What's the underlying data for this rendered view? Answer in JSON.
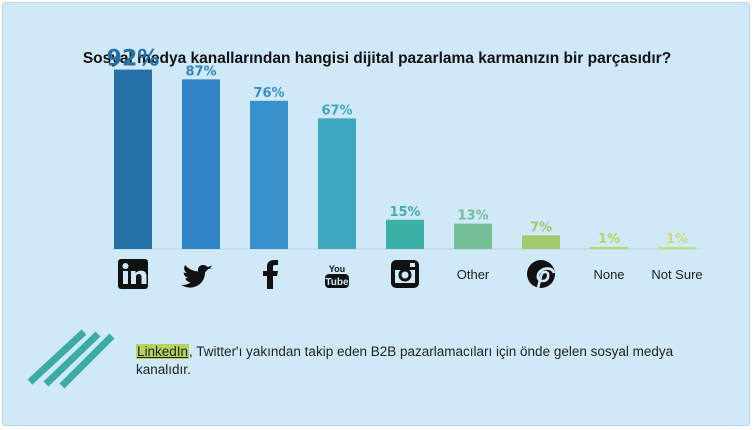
{
  "chart_data": {
    "type": "bar",
    "title": "Sosyal medya kanallarından hangisi dijital pazarlama karmanızın bir parçasıdır?",
    "categories": [
      "LinkedIn",
      "Twitter",
      "Facebook",
      "YouTube",
      "Instagram",
      "Other",
      "Pinterest",
      "None",
      "Not Sure"
    ],
    "values": [
      92,
      87,
      76,
      67,
      15,
      13,
      7,
      1,
      1
    ],
    "value_labels": [
      "92%",
      "87%",
      "76%",
      "67%",
      "15%",
      "13%",
      "7%",
      "1%",
      "1%"
    ],
    "printed_category_labels": [
      "",
      "",
      "",
      "",
      "",
      "Other",
      "",
      "None",
      "Not Sure"
    ],
    "icons": [
      "linkedin-icon",
      "twitter-icon",
      "facebook-icon",
      "youtube-icon",
      "instagram-icon",
      "",
      "pinterest-icon",
      "",
      ""
    ],
    "colors": [
      "#2471a7",
      "#2e84c6",
      "#3891c8",
      "#3fa7c0",
      "#3db0a8",
      "#74bf96",
      "#a4c96c",
      "#bcd45f",
      "#c7dd74"
    ],
    "ylim": [
      0,
      100
    ],
    "xlabel": "",
    "ylabel": "",
    "grid": false,
    "legend": "none"
  },
  "note": {
    "highlight": "LinkedIn",
    "text": ", Twitter'ı yakından takip eden B2B pazarlamacıları için önde gelen sosyal medya kanalıdır."
  },
  "colors": {
    "background": "#cfe9f8",
    "highlight": "#b6d35d",
    "stripes": "#3aaca4"
  }
}
